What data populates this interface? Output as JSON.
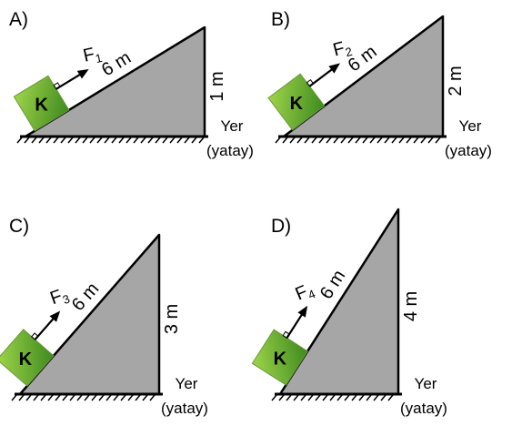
{
  "panels": [
    {
      "label": "A)",
      "block": "K",
      "force": {
        "symbol": "F",
        "subscript": "1"
      },
      "incline": "6 m",
      "height": "1 m",
      "ground": [
        "Yer",
        "(yatay)"
      ]
    },
    {
      "label": "B)",
      "block": "K",
      "force": {
        "symbol": "F",
        "subscript": "2"
      },
      "incline": "6 m",
      "height": "2 m",
      "ground": [
        "Yer",
        "(yatay)"
      ]
    },
    {
      "label": "C)",
      "block": "K",
      "force": {
        "symbol": "F",
        "subscript": "3"
      },
      "incline": "6 m",
      "height": "3 m",
      "ground": [
        "Yer",
        "(yatay)"
      ]
    },
    {
      "label": "D)",
      "block": "K",
      "force": {
        "symbol": "F",
        "subscript": "4"
      },
      "incline": "6 m",
      "height": "4 m",
      "ground": [
        "Yer",
        "(yatay)"
      ]
    }
  ]
}
